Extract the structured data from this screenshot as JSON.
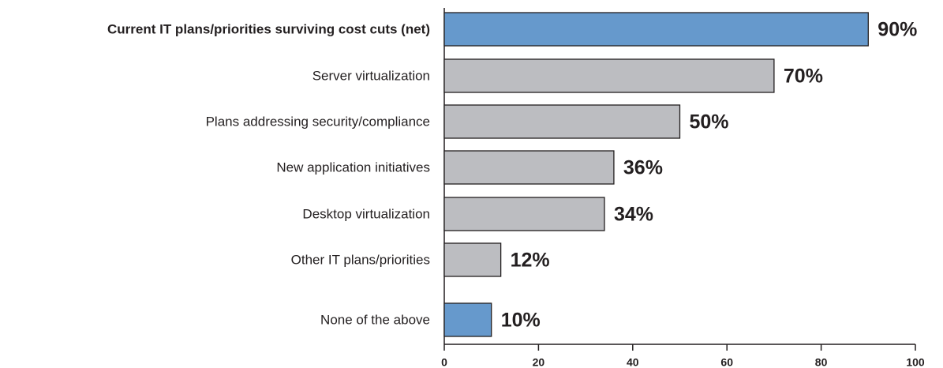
{
  "chart_data": {
    "type": "bar",
    "orientation": "horizontal",
    "categories": [
      "Current IT plans/priorities surviving cost cuts (net)",
      "Server virtualization",
      "Plans addressing security/compliance",
      "New application initiatives",
      "Desktop virtualization",
      "Other IT plans/priorities",
      "None of the above"
    ],
    "values": [
      90,
      70,
      50,
      36,
      34,
      12,
      10
    ],
    "value_labels": [
      "90%",
      "70%",
      "50%",
      "36%",
      "34%",
      "12%",
      "10%"
    ],
    "colors": [
      "#6699cc",
      "#bcbdc1",
      "#bcbdc1",
      "#bcbdc1",
      "#bcbdc1",
      "#bcbdc1",
      "#6699cc"
    ],
    "xlim": [
      0,
      100
    ],
    "xticks": [
      0,
      20,
      40,
      60,
      80,
      100
    ],
    "grid": false
  }
}
